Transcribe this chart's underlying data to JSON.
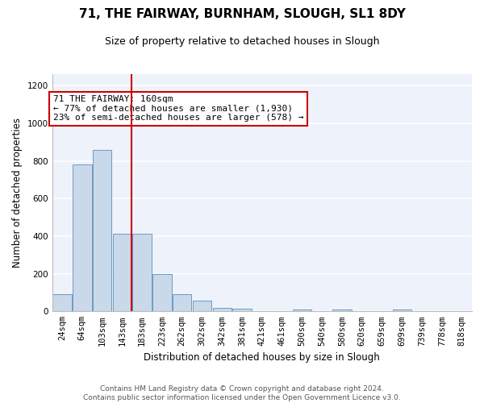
{
  "title": "71, THE FAIRWAY, BURNHAM, SLOUGH, SL1 8DY",
  "subtitle": "Size of property relative to detached houses in Slough",
  "xlabel": "Distribution of detached houses by size in Slough",
  "ylabel": "Number of detached properties",
  "bar_color": "#c9d9ea",
  "bar_edge_color": "#6a9cc0",
  "bg_color": "#eef2fb",
  "grid_color": "#ffffff",
  "annotation_text": "71 THE FAIRWAY: 160sqm\n← 77% of detached houses are smaller (1,930)\n23% of semi-detached houses are larger (578) →",
  "vline_color": "#cc0000",
  "vline_bar_index": 3,
  "categories": [
    "24sqm",
    "64sqm",
    "103sqm",
    "143sqm",
    "183sqm",
    "223sqm",
    "262sqm",
    "302sqm",
    "342sqm",
    "381sqm",
    "421sqm",
    "461sqm",
    "500sqm",
    "540sqm",
    "580sqm",
    "620sqm",
    "659sqm",
    "699sqm",
    "739sqm",
    "778sqm",
    "818sqm"
  ],
  "values": [
    90,
    780,
    860,
    415,
    415,
    200,
    90,
    55,
    20,
    15,
    0,
    0,
    10,
    0,
    10,
    0,
    0,
    10,
    0,
    0,
    0
  ],
  "ylim": [
    0,
    1260
  ],
  "yticks": [
    0,
    200,
    400,
    600,
    800,
    1000,
    1200
  ],
  "footnote": "Contains HM Land Registry data © Crown copyright and database right 2024.\nContains public sector information licensed under the Open Government Licence v3.0.",
  "title_fontsize": 11,
  "subtitle_fontsize": 9,
  "xlabel_fontsize": 8.5,
  "ylabel_fontsize": 8.5,
  "tick_fontsize": 7.5,
  "annot_fontsize": 8,
  "footnote_fontsize": 6.5
}
